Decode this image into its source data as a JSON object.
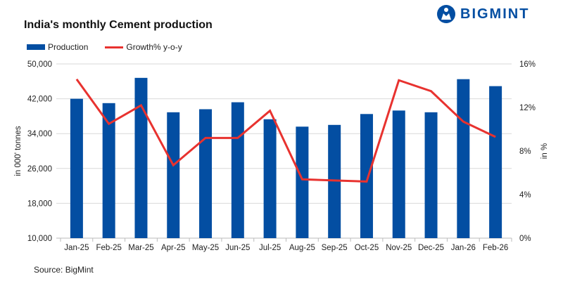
{
  "brand": {
    "name": "BIGMINT",
    "color": "#034ea2"
  },
  "source": "Source: BigMint",
  "chart_data": {
    "type": "bar+line",
    "title": "India's monthly Cement production",
    "categories": [
      "Jan-25",
      "Feb-25",
      "Mar-25",
      "Apr-25",
      "May-25",
      "Jun-25",
      "Jul-25",
      "Aug-25",
      "Sep-25",
      "Oct-25",
      "Nov-25",
      "Dec-25",
      "Jan-26",
      "Feb-26"
    ],
    "series": [
      {
        "name": "Production",
        "type": "bar",
        "axis": "left",
        "color": "#034ea2",
        "values": [
          42000,
          41000,
          46800,
          38900,
          39600,
          41200,
          37300,
          35600,
          36000,
          38500,
          39300,
          38900,
          46500,
          44900
        ]
      },
      {
        "name": "Growth% y-o-y",
        "type": "line",
        "axis": "right",
        "color": "#e8322f",
        "values": [
          14.6,
          10.5,
          12.2,
          6.7,
          9.2,
          9.2,
          11.7,
          5.4,
          5.3,
          5.2,
          14.5,
          13.5,
          10.7,
          9.3
        ]
      }
    ],
    "ylabel": "in 000' tonnes",
    "ylim": [
      10000,
      50000
    ],
    "yticks": [
      "10,000",
      "18,000",
      "26,000",
      "34,000",
      "42,000",
      "50,000"
    ],
    "y2label": "in %",
    "y2lim": [
      0,
      16
    ],
    "y2ticks": [
      "0%",
      "4%",
      "8%",
      "12%",
      "16%"
    ],
    "grid": true,
    "legend": "top-left"
  }
}
